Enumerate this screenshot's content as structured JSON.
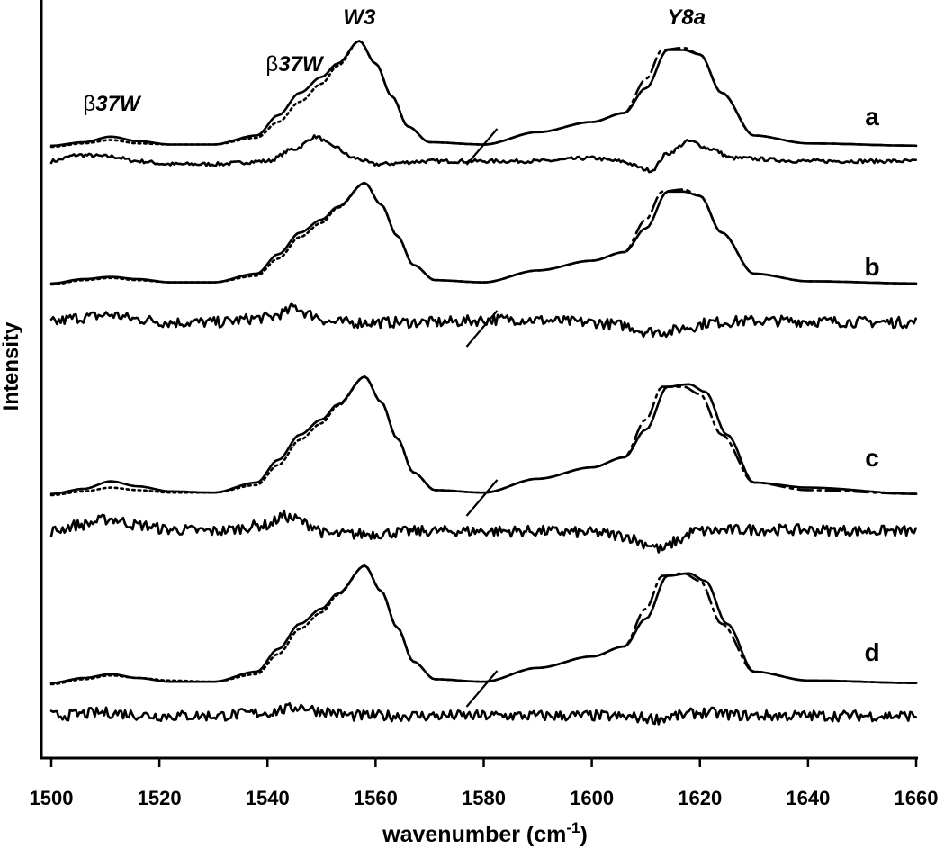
{
  "chart_data": {
    "type": "line",
    "title": "",
    "xlabel_main": "wavenumber (cm",
    "xlabel_sup": "-1",
    "xlabel_close": ")",
    "ylabel": "Intensity",
    "xlim": [
      1500,
      1660
    ],
    "x_ticks": [
      "1500",
      "1520",
      "1540",
      "1560",
      "1580",
      "1600",
      "1620",
      "1640",
      "1660"
    ],
    "x_tick_values": [
      1500,
      1520,
      1540,
      1560,
      1580,
      1600,
      1620,
      1640,
      1660
    ],
    "y_ticks_shown": false,
    "grid": false,
    "band_labels": [
      {
        "text": "W3",
        "x": 1557
      },
      {
        "text": "Y8a",
        "x": 1617
      },
      {
        "prefix": "β",
        "text": "37W",
        "x": 1511
      },
      {
        "prefix": "β",
        "text": "37W",
        "x": 1549
      }
    ],
    "panels": [
      {
        "label": "a",
        "series": [
          {
            "style": "solid",
            "x": [
              1500,
              1506,
              1511,
              1516,
              1522,
              1530,
              1538,
              1542,
              1546,
              1550,
              1553,
              1557,
              1560,
              1563,
              1566,
              1570,
              1580,
              1590,
              1600,
              1606,
              1610,
              1614,
              1617,
              1620,
              1624,
              1630,
              1640,
              1660
            ],
            "y": [
              0.01,
              0.04,
              0.09,
              0.05,
              0.02,
              0.02,
              0.1,
              0.28,
              0.48,
              0.62,
              0.74,
              0.94,
              0.74,
              0.45,
              0.18,
              0.04,
              0.02,
              0.13,
              0.22,
              0.3,
              0.52,
              0.86,
              0.86,
              0.82,
              0.48,
              0.1,
              0.03,
              0.01
            ]
          },
          {
            "style": "dotted",
            "x": [
              1500,
              1506,
              1511,
              1516,
              1522,
              1530,
              1538,
              1542,
              1546,
              1550,
              1553,
              1557,
              1560,
              1563,
              1566,
              1570,
              1580
            ],
            "y": [
              0.0,
              0.03,
              0.06,
              0.03,
              0.02,
              0.02,
              0.08,
              0.22,
              0.4,
              0.56,
              0.72,
              0.94,
              0.74,
              0.45,
              0.18,
              0.04,
              0.02
            ]
          },
          {
            "style": "dashdot",
            "x": [
              1580,
              1590,
              1600,
              1606,
              1610,
              1613,
              1617,
              1620,
              1624,
              1630,
              1640,
              1660
            ],
            "y": [
              0.02,
              0.13,
              0.22,
              0.3,
              0.6,
              0.86,
              0.88,
              0.82,
              0.48,
              0.1,
              0.03,
              0.01
            ]
          },
          {
            "style": "solid",
            "noise": 0.004,
            "x": [
              1500,
              1505,
              1511,
              1516,
              1522,
              1530,
              1540,
              1545,
              1549,
              1552,
              1556,
              1560,
              1570,
              1590,
              1600,
              1605,
              1611,
              1614,
              1618,
              1622,
              1626,
              1640,
              1660
            ],
            "y": [
              0.0,
              0.04,
              0.03,
              0.0,
              -0.02,
              -0.02,
              0.0,
              0.08,
              0.16,
              0.1,
              0.02,
              -0.02,
              0.0,
              0.0,
              0.02,
              0.0,
              -0.06,
              0.05,
              0.13,
              0.08,
              0.02,
              0.0,
              0.0
            ]
          }
        ]
      },
      {
        "label": "b",
        "series": [
          {
            "style": "solid",
            "x": [
              1500,
              1506,
              1511,
              1516,
              1522,
              1530,
              1538,
              1542,
              1546,
              1550,
              1553,
              1558,
              1561,
              1564,
              1567,
              1571,
              1580,
              1590,
              1600,
              1606,
              1610,
              1614,
              1617,
              1620,
              1624,
              1630,
              1640,
              1660
            ],
            "y": [
              0.01,
              0.05,
              0.07,
              0.05,
              0.02,
              0.02,
              0.1,
              0.28,
              0.48,
              0.6,
              0.72,
              0.94,
              0.74,
              0.45,
              0.18,
              0.04,
              0.02,
              0.13,
              0.22,
              0.3,
              0.52,
              0.86,
              0.86,
              0.82,
              0.48,
              0.1,
              0.03,
              0.01
            ]
          },
          {
            "style": "dotted",
            "x": [
              1500,
              1506,
              1511,
              1516,
              1522,
              1530,
              1538,
              1542,
              1546,
              1550,
              1553,
              1558,
              1561,
              1564,
              1567,
              1571,
              1580
            ],
            "y": [
              0.0,
              0.04,
              0.06,
              0.04,
              0.02,
              0.02,
              0.08,
              0.24,
              0.44,
              0.57,
              0.71,
              0.94,
              0.74,
              0.45,
              0.18,
              0.04,
              0.02
            ]
          },
          {
            "style": "dashdot",
            "x": [
              1580,
              1590,
              1600,
              1606,
              1610,
              1613,
              1617,
              1620,
              1624,
              1630,
              1640,
              1660
            ],
            "y": [
              0.02,
              0.13,
              0.22,
              0.3,
              0.6,
              0.86,
              0.88,
              0.82,
              0.48,
              0.1,
              0.03,
              0.01
            ]
          },
          {
            "style": "solid",
            "noise": 0.012,
            "x": [
              1500,
              1505,
              1511,
              1516,
              1522,
              1530,
              1540,
              1543,
              1545,
              1548,
              1552,
              1558,
              1570,
              1585,
              1600,
              1606,
              1610,
              1614,
              1618,
              1622,
              1630,
              1660
            ],
            "y": [
              0.0,
              0.03,
              0.05,
              0.02,
              0.0,
              0.0,
              0.03,
              0.06,
              0.1,
              0.05,
              0.0,
              0.0,
              0.0,
              0.02,
              0.0,
              -0.02,
              -0.06,
              -0.06,
              -0.03,
              0.0,
              0.01,
              0.0
            ]
          }
        ]
      },
      {
        "label": "c",
        "series": [
          {
            "style": "solid",
            "x": [
              1500,
              1506,
              1511,
              1516,
              1522,
              1530,
              1538,
              1542,
              1546,
              1550,
              1553,
              1558,
              1561,
              1564,
              1567,
              1571,
              1580,
              1590,
              1600,
              1606,
              1610,
              1614,
              1618,
              1621,
              1625,
              1630,
              1640,
              1660
            ],
            "y": [
              0.01,
              0.05,
              0.11,
              0.07,
              0.03,
              0.02,
              0.1,
              0.28,
              0.48,
              0.6,
              0.72,
              0.94,
              0.74,
              0.45,
              0.18,
              0.04,
              0.02,
              0.13,
              0.22,
              0.3,
              0.52,
              0.86,
              0.88,
              0.82,
              0.48,
              0.1,
              0.06,
              0.01
            ]
          },
          {
            "style": "dotted",
            "x": [
              1500,
              1506,
              1511,
              1516,
              1522,
              1530,
              1538,
              1542,
              1546,
              1550,
              1553,
              1558,
              1561,
              1564,
              1567,
              1571,
              1580
            ],
            "y": [
              0.0,
              0.03,
              0.06,
              0.04,
              0.02,
              0.02,
              0.08,
              0.24,
              0.44,
              0.57,
              0.71,
              0.94,
              0.74,
              0.45,
              0.18,
              0.04,
              0.02
            ]
          },
          {
            "style": "dashdot",
            "x": [
              1580,
              1590,
              1600,
              1606,
              1610,
              1613,
              1617,
              1620,
              1624,
              1630,
              1640,
              1660
            ],
            "y": [
              0.02,
              0.13,
              0.22,
              0.3,
              0.6,
              0.86,
              0.86,
              0.8,
              0.48,
              0.1,
              0.04,
              0.01
            ]
          },
          {
            "style": "solid",
            "noise": 0.012,
            "x": [
              1500,
              1505,
              1511,
              1516,
              1522,
              1530,
              1540,
              1543,
              1545,
              1548,
              1551,
              1556,
              1570,
              1590,
              1600,
              1606,
              1610,
              1613,
              1616,
              1619,
              1630,
              1660
            ],
            "y": [
              0.0,
              0.04,
              0.08,
              0.04,
              0.01,
              0.0,
              0.04,
              0.1,
              0.08,
              0.04,
              -0.02,
              -0.02,
              0.0,
              0.0,
              -0.01,
              -0.03,
              -0.08,
              -0.12,
              -0.06,
              0.0,
              0.01,
              0.0
            ]
          }
        ]
      },
      {
        "label": "d",
        "series": [
          {
            "style": "solid",
            "x": [
              1500,
              1506,
              1511,
              1516,
              1522,
              1530,
              1538,
              1542,
              1546,
              1550,
              1553,
              1558,
              1561,
              1564,
              1567,
              1571,
              1580,
              1590,
              1600,
              1606,
              1610,
              1614,
              1618,
              1621,
              1625,
              1630,
              1640,
              1660
            ],
            "y": [
              0.01,
              0.05,
              0.08,
              0.05,
              0.02,
              0.02,
              0.1,
              0.28,
              0.48,
              0.6,
              0.72,
              0.94,
              0.74,
              0.45,
              0.18,
              0.04,
              0.02,
              0.13,
              0.22,
              0.3,
              0.52,
              0.86,
              0.88,
              0.82,
              0.48,
              0.1,
              0.03,
              0.01
            ]
          },
          {
            "style": "dotted",
            "x": [
              1500,
              1506,
              1511,
              1516,
              1522,
              1530,
              1538,
              1542,
              1546,
              1550,
              1553,
              1558,
              1561,
              1564,
              1567,
              1571,
              1580
            ],
            "y": [
              0.0,
              0.04,
              0.07,
              0.05,
              0.03,
              0.02,
              0.08,
              0.24,
              0.44,
              0.57,
              0.71,
              0.94,
              0.74,
              0.45,
              0.18,
              0.04,
              0.02
            ]
          },
          {
            "style": "dashdot",
            "x": [
              1580,
              1590,
              1600,
              1606,
              1610,
              1613,
              1617,
              1620,
              1624,
              1630,
              1640,
              1660
            ],
            "y": [
              0.02,
              0.13,
              0.22,
              0.3,
              0.6,
              0.86,
              0.88,
              0.82,
              0.48,
              0.1,
              0.03,
              0.01
            ]
          },
          {
            "style": "solid",
            "noise": 0.012,
            "x": [
              1500,
              1510,
              1520,
              1530,
              1540,
              1543,
              1546,
              1550,
              1556,
              1570,
              1590,
              1600,
              1608,
              1612,
              1616,
              1620,
              1630,
              1660
            ],
            "y": [
              0.0,
              0.02,
              0.0,
              0.0,
              0.02,
              0.04,
              0.06,
              0.03,
              0.0,
              0.0,
              0.0,
              0.0,
              -0.01,
              -0.02,
              0.0,
              0.02,
              0.0,
              0.0
            ]
          }
        ]
      }
    ]
  }
}
